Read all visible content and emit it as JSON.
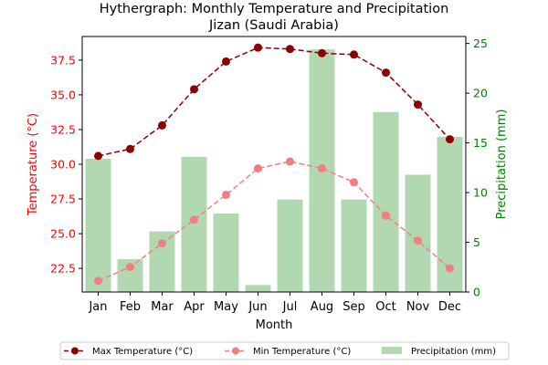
{
  "chart_data": {
    "type": "bar+line",
    "title": "Hythergraph: Monthly Temperature and Precipitation",
    "subtitle": "Jizan (Saudi Arabia)",
    "xlabel": "Month",
    "ylabel_left": "Temperature (°C)",
    "ylabel_right": "Precipitation (mm)",
    "categories": [
      "Jan",
      "Feb",
      "Mar",
      "Apr",
      "May",
      "Jun",
      "Jul",
      "Aug",
      "Sep",
      "Oct",
      "Nov",
      "Dec"
    ],
    "ylim_left": [
      20.8,
      39.2
    ],
    "yticks_left": [
      "22.5",
      "25.0",
      "27.5",
      "30.0",
      "32.5",
      "35.0",
      "37.5"
    ],
    "ylim_right": [
      0,
      25.7
    ],
    "yticks_right": [
      "0",
      "5",
      "10",
      "15",
      "20",
      "25"
    ],
    "grid": false,
    "legend_position": "bottom-center",
    "series": [
      {
        "name": "Max Temperature (°C)",
        "kind": "line",
        "axis": "left",
        "color": "#8b0000",
        "dash": "dashed",
        "values": [
          30.6,
          31.1,
          32.8,
          35.4,
          37.4,
          38.4,
          38.3,
          38.0,
          37.9,
          36.6,
          34.3,
          31.8
        ]
      },
      {
        "name": "Min Temperature (°C)",
        "kind": "line",
        "axis": "left",
        "color": "#f08080",
        "dash": "dashed",
        "values": [
          21.6,
          22.6,
          24.3,
          26.0,
          27.8,
          29.7,
          30.2,
          29.7,
          28.7,
          26.3,
          24.5,
          22.5
        ]
      },
      {
        "name": "Precipitation (mm)",
        "kind": "bar",
        "axis": "right",
        "color": "#b2d8b2",
        "values": [
          13.4,
          3.3,
          6.1,
          13.6,
          7.9,
          0.7,
          9.3,
          24.4,
          9.3,
          18.1,
          11.8,
          15.6
        ]
      }
    ]
  },
  "colors": {
    "left_axis": "#ff0000",
    "right_axis": "#008000"
  }
}
